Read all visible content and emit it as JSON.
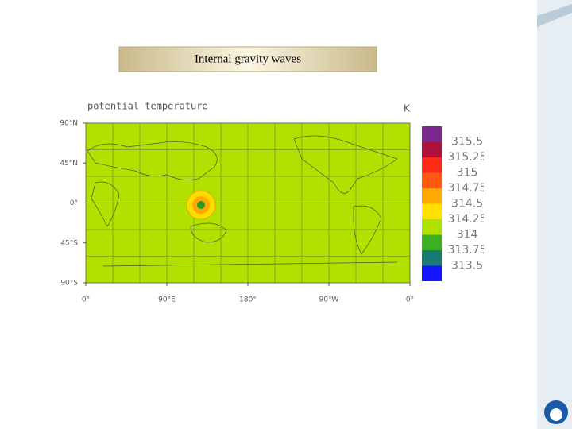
{
  "slide": {
    "title": "Internal gravity waves"
  },
  "plot": {
    "title": "potential temperature",
    "units": "K",
    "y_labels": [
      "90°N",
      "45°N",
      "0°",
      "45°S",
      "90°S"
    ],
    "x_labels": [
      "0°",
      "90°E",
      "180°",
      "90°W",
      "0°"
    ],
    "colorbar_labels": [
      "315.5",
      "315.25",
      "315",
      "314.75",
      "314.5",
      "314.25",
      "314",
      "313.75",
      "313.5"
    ]
  }
}
